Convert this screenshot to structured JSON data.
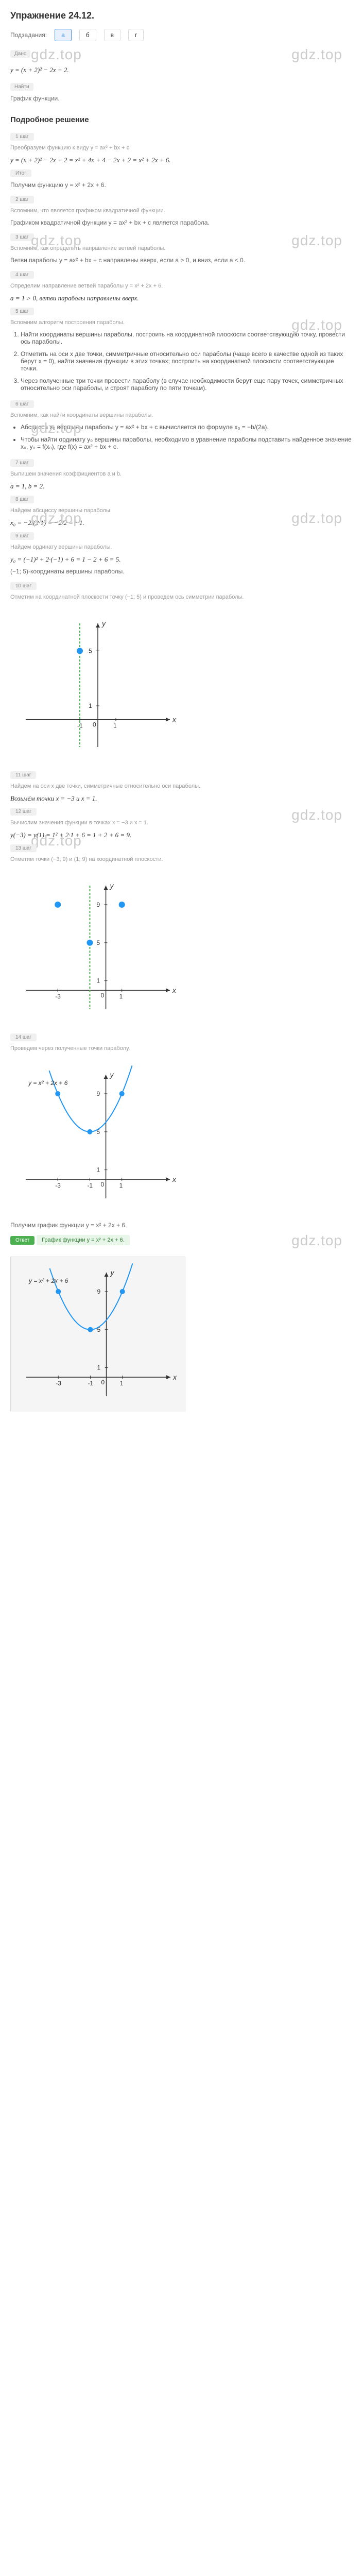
{
  "title": "Упражнение 24.12.",
  "subsection": {
    "label": "Подзадания:",
    "items": [
      "а",
      "б",
      "в",
      "г"
    ],
    "active": "а"
  },
  "task": {
    "label": "Дано",
    "formula": "y = (x + 2)² − 2x + 2.",
    "find_label": "Найти",
    "find_text": "График функции."
  },
  "solution_title": "Подробное решение",
  "watermarks": {
    "text": "gdz.top"
  },
  "steps": [
    {
      "label": "1 шаг",
      "text": "Преобразуем функцию к виду y = ax² + bx + c",
      "formula": "y = (x + 2)² − 2x + 2 = x² + 4x + 4 − 2x + 2 = x² + 2x + 6.",
      "result_label": "Итог",
      "result": "Получим функцию y = x² + 2x + 6."
    },
    {
      "label": "2 шаг",
      "note": "Вспомним, что является графиком квадратичной функции.",
      "text": "Графиком квадратичной функции y = ax² + bx + c является парабола."
    },
    {
      "label": "3 шаг",
      "note": "Вспомним, как определить направление ветвей параболы.",
      "text": "Ветви параболы y = ax² + bx + c направлены вверх, если a > 0, и вниз, если a < 0."
    },
    {
      "label": "4 шаг",
      "text": "Определим направление ветвей параболы y = x² + 2x + 6.",
      "formula": "a = 1 > 0, ветви параболы направлены вверх."
    },
    {
      "label": "5 шаг",
      "note": "Вспомним алгоритм построения параболы.",
      "list": [
        "Найти координаты вершины параболы, построить на координатной плоскости соответствующую точку, провести ось параболы.",
        "Отметить на оси x две точки, симметричные относительно оси параболы (чаще всего в качестве одной из таких берут x = 0), найти значения функции в этих точках; построить на координатной плоскости соответствующие точки.",
        "Через полученные три точки провести параболу (в случае необходимости берут еще пару точек, симметричных относительно оси параболы, и строят параболу по пяти точкам)."
      ]
    },
    {
      "label": "6 шаг",
      "note": "Вспомним, как найти координаты вершины параболы.",
      "bullets": [
        "Абсцисса x₀ вершины параболы y = ax² + bx + c вычисляется по формуле x₀ = −b/(2a).",
        "Чтобы найти ординату y₀ вершины параболы, необходимо в уравнение параболы подставить найденное значение x₀, y₀ = f(x₀), где f(x) = ax² + bx + c."
      ]
    },
    {
      "label": "7 шаг",
      "text": "Выпишем значения коэффициентов a и b.",
      "formula": "a = 1, b = 2."
    },
    {
      "label": "8 шаг",
      "text": "Найдем абсциссу вершины параболы.",
      "formula": "x₀ = −2/(2·1) = −2/2 = −1."
    },
    {
      "label": "9 шаг",
      "text": "Найдем ординату вершины параболы.",
      "formula": "y₀ = (−1)² + 2·(−1) + 6 = 1 − 2 + 6 = 5.",
      "result": "(−1; 5)-координаты вершины параболы."
    },
    {
      "label": "10 шаг",
      "text": "Отметим на координатной плоскости точку (−1; 5) и проведем ось симметрии параболы."
    },
    {
      "label": "11 шаг",
      "text": "Найдем на оси x две точки, симметричные относительно оси параболы.",
      "formula": "Возьмём точки x = −3 и x = 1."
    },
    {
      "label": "12 шаг",
      "text": "Вычислим значения функции в точках x = −3 и x = 1.",
      "formula": "y(−3) = y(1) = 1² + 2·1 + 6 = 1 + 2 + 6 = 9."
    },
    {
      "label": "13 шаг",
      "text": "Отметим точки (−3; 9) и (1; 9) на координатной плоскости."
    },
    {
      "label": "14 шаг",
      "text": "Проведем через полученные точки параболу.",
      "formula": "y = x² + 2x + 6",
      "result": "Получим график функции y = x² + 2x + 6."
    }
  ],
  "answer": {
    "label": "Ответ",
    "text": "График функции y = x² + 2x + 6.",
    "formula": "y = x² + 2x + 6"
  },
  "chart1": {
    "type": "scatter",
    "xlim": [
      -4,
      4
    ],
    "ylim": [
      -2,
      7
    ],
    "xticks": [
      -1,
      1
    ],
    "yticks": [
      1,
      5
    ],
    "axis_color": "#333",
    "grid_color": "#e0e0e0",
    "background": "#ffffff",
    "axis_line": {
      "x": -1,
      "color": "#4caf50",
      "dash": "4,3",
      "width": 2
    },
    "points": [
      {
        "x": -1,
        "y": 5,
        "color": "#2196f3",
        "size": 6
      }
    ],
    "labels": {
      "x": "x",
      "y": "y",
      "fontsize": 14
    }
  },
  "chart2": {
    "type": "scatter",
    "xlim": [
      -5,
      4
    ],
    "ylim": [
      -2,
      11
    ],
    "xticks": [
      -3,
      1
    ],
    "yticks": [
      1,
      5,
      9
    ],
    "axis_color": "#333",
    "background": "#ffffff",
    "axis_line": {
      "x": -1,
      "color": "#4caf50",
      "dash": "4,3",
      "width": 2
    },
    "points": [
      {
        "x": -1,
        "y": 5,
        "color": "#2196f3",
        "size": 6
      },
      {
        "x": -3,
        "y": 9,
        "color": "#2196f3",
        "size": 6
      },
      {
        "x": 1,
        "y": 9,
        "color": "#2196f3",
        "size": 6
      }
    ],
    "labels": {
      "x": "x",
      "y": "y",
      "fontsize": 14
    }
  },
  "chart3": {
    "type": "parabola",
    "xlim": [
      -5,
      4
    ],
    "ylim": [
      -2,
      11
    ],
    "xticks": [
      -3,
      -1,
      1
    ],
    "yticks": [
      1,
      5,
      9
    ],
    "axis_color": "#333",
    "background": "#ffffff",
    "curve": {
      "a": 1,
      "b": 2,
      "c": 6,
      "color": "#2196f3",
      "width": 2
    },
    "points": [
      {
        "x": -1,
        "y": 5,
        "color": "#2196f3",
        "size": 5
      },
      {
        "x": -3,
        "y": 9,
        "color": "#2196f3",
        "size": 5
      },
      {
        "x": 1,
        "y": 9,
        "color": "#2196f3",
        "size": 5
      }
    ],
    "formula_label": "y = x² + 2x + 6",
    "labels": {
      "x": "x",
      "y": "y",
      "fontsize": 14
    }
  },
  "chart4": {
    "type": "parabola",
    "xlim": [
      -5,
      4
    ],
    "ylim": [
      -2,
      11
    ],
    "xticks": [
      -3,
      -1,
      1
    ],
    "yticks": [
      1,
      5,
      9
    ],
    "axis_color": "#333",
    "background": "#f5f5f5",
    "curve": {
      "a": 1,
      "b": 2,
      "c": 6,
      "color": "#2196f3",
      "width": 2
    },
    "points": [
      {
        "x": -1,
        "y": 5,
        "color": "#2196f3",
        "size": 5
      },
      {
        "x": -3,
        "y": 9,
        "color": "#2196f3",
        "size": 5
      },
      {
        "x": 1,
        "y": 9,
        "color": "#2196f3",
        "size": 5
      }
    ],
    "formula_label": "y = x² + 2x + 6",
    "labels": {
      "x": "x",
      "y": "y",
      "fontsize": 14
    }
  }
}
